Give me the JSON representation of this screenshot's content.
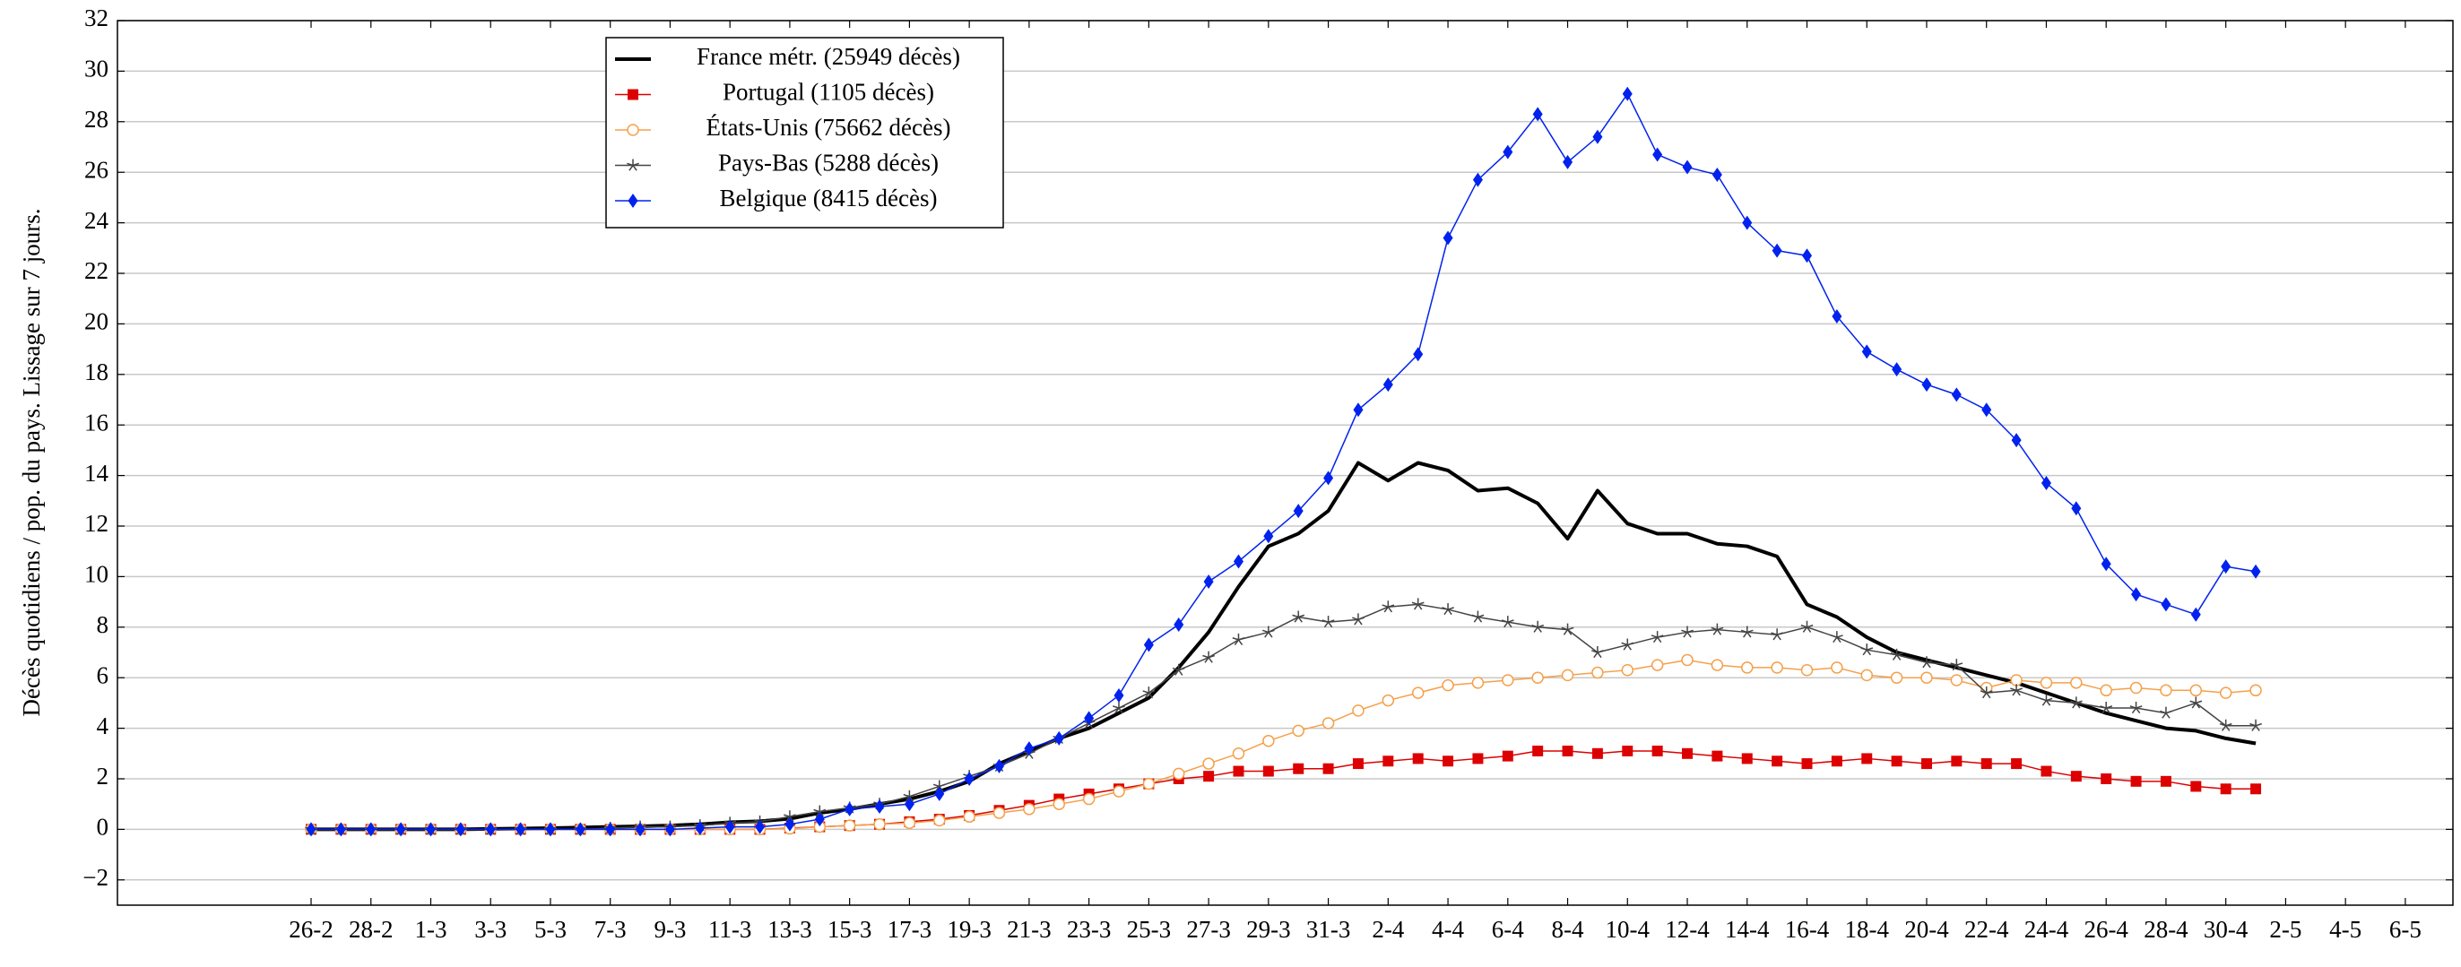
{
  "chart_data": {
    "type": "line",
    "ylabel": "Décès quotidiens / pop. du pays. Lissage sur 7 jours.",
    "categories": [
      "26-2",
      null,
      "28-2",
      null,
      "1-3",
      null,
      "3-3",
      null,
      "5-3",
      null,
      "7-3",
      null,
      "9-3",
      null,
      "11-3",
      null,
      "13-3",
      null,
      "15-3",
      null,
      "17-3",
      null,
      "19-3",
      null,
      "21-3",
      null,
      "23-3",
      null,
      "25-3",
      null,
      "27-3",
      null,
      "29-3",
      null,
      "31-3",
      null,
      "2-4",
      null,
      "4-4",
      null,
      "6-4",
      null,
      "8-4",
      null,
      "10-4",
      null,
      "12-4",
      null,
      "14-4",
      null,
      "16-4",
      null,
      "18-4",
      null,
      "20-4",
      null,
      "22-4",
      null,
      "24-4",
      null,
      "26-4",
      null,
      "28-4",
      null,
      "30-4",
      null,
      "2-5",
      null,
      "4-5",
      null,
      "6-5"
    ],
    "ylim": [
      -3,
      32
    ],
    "yticks": [
      {
        "value": -2,
        "label": "−2"
      },
      0,
      2,
      4,
      6,
      8,
      10,
      12,
      14,
      16,
      18,
      20,
      22,
      24,
      26,
      28,
      30,
      32
    ],
    "grid": true,
    "legend": "upper left",
    "series": [
      {
        "name": "France métr. (25949 décès)",
        "color": "#000000",
        "marker": "none",
        "values": [
          0,
          0,
          0,
          0,
          0,
          0,
          0.02,
          0.03,
          0.05,
          0.07,
          0.1,
          0.12,
          0.15,
          0.2,
          0.28,
          0.32,
          0.42,
          0.65,
          0.8,
          1.0,
          1.2,
          1.5,
          1.9,
          2.6,
          3.1,
          3.6,
          4.0,
          4.6,
          5.2,
          6.4,
          7.8,
          9.6,
          11.2,
          11.7,
          12.6,
          14.5,
          13.8,
          14.5,
          14.2,
          13.4,
          13.5,
          12.9,
          11.5,
          13.4,
          12.1,
          11.7,
          11.7,
          11.3,
          11.2,
          10.8,
          8.9,
          8.4,
          7.6,
          7.0,
          6.7,
          6.4,
          6.1,
          5.8,
          5.4,
          5.0,
          4.6,
          4.3,
          4.0,
          3.9,
          3.6,
          3.4,
          null,
          null,
          null,
          null,
          null
        ]
      },
      {
        "name": "Portugal (1105 décès)",
        "color": "#dd0000",
        "marker": "square",
        "values": [
          0,
          0,
          0,
          0,
          0,
          0,
          0,
          0,
          0,
          0,
          0,
          0,
          0,
          0,
          0,
          0,
          0.05,
          0.1,
          0.15,
          0.2,
          0.3,
          0.4,
          0.55,
          0.75,
          0.95,
          1.2,
          1.4,
          1.6,
          1.8,
          2.0,
          2.1,
          2.3,
          2.3,
          2.4,
          2.4,
          2.6,
          2.7,
          2.8,
          2.7,
          2.8,
          2.9,
          3.1,
          3.1,
          3.0,
          3.1,
          3.1,
          3.0,
          2.9,
          2.8,
          2.7,
          2.6,
          2.7,
          2.8,
          2.7,
          2.6,
          2.7,
          2.6,
          2.6,
          2.3,
          2.1,
          2.0,
          1.9,
          1.9,
          1.7,
          1.6,
          1.6,
          null,
          null,
          null,
          null,
          null
        ]
      },
      {
        "name": "États-Unis (75662 décès)",
        "color": "#f5a04a",
        "marker": "circle",
        "values": [
          0,
          0,
          0,
          0,
          0,
          0,
          0,
          0,
          0,
          0,
          0,
          0,
          0,
          0,
          0,
          0,
          0.03,
          0.1,
          0.15,
          0.2,
          0.25,
          0.35,
          0.5,
          0.65,
          0.8,
          1.0,
          1.2,
          1.5,
          1.8,
          2.2,
          2.6,
          3.0,
          3.5,
          3.9,
          4.2,
          4.7,
          5.1,
          5.4,
          5.7,
          5.8,
          5.9,
          6.0,
          6.1,
          6.2,
          6.3,
          6.5,
          6.7,
          6.5,
          6.4,
          6.4,
          6.3,
          6.4,
          6.1,
          6.0,
          6.0,
          5.9,
          5.6,
          5.9,
          5.8,
          5.8,
          5.5,
          5.6,
          5.5,
          5.5,
          5.4,
          5.5,
          null,
          null,
          null,
          null,
          null
        ]
      },
      {
        "name": "Pays-Bas (5288 décès)",
        "color": "#444444",
        "marker": "star",
        "values": [
          0,
          0,
          0,
          0,
          0,
          0,
          0,
          0,
          0,
          0,
          0.05,
          0.1,
          0.1,
          0.15,
          0.25,
          0.3,
          0.5,
          0.7,
          0.85,
          1.0,
          1.3,
          1.7,
          2.1,
          2.5,
          3.0,
          3.6,
          4.2,
          4.8,
          5.4,
          6.3,
          6.8,
          7.5,
          7.8,
          8.4,
          8.2,
          8.3,
          8.8,
          8.9,
          8.7,
          8.4,
          8.2,
          8.0,
          7.9,
          7.0,
          7.3,
          7.6,
          7.8,
          7.9,
          7.8,
          7.7,
          8.0,
          7.6,
          7.1,
          6.9,
          6.6,
          6.5,
          5.4,
          5.5,
          5.1,
          5.0,
          4.8,
          4.8,
          4.6,
          5.0,
          4.1,
          4.1,
          null,
          null,
          null,
          null,
          null
        ]
      },
      {
        "name": "Belgique (8415 décès)",
        "color": "#0022ee",
        "marker": "diamond",
        "values": [
          0,
          0,
          0,
          0,
          0,
          0,
          0,
          0,
          0,
          0,
          0,
          0,
          0,
          0.05,
          0.1,
          0.1,
          0.2,
          0.4,
          0.8,
          0.9,
          1.0,
          1.4,
          2.0,
          2.5,
          3.2,
          3.6,
          4.4,
          5.3,
          7.3,
          8.1,
          9.8,
          10.6,
          11.6,
          12.6,
          13.9,
          16.6,
          17.6,
          18.8,
          23.4,
          25.7,
          26.8,
          28.3,
          26.4,
          27.4,
          29.1,
          26.7,
          26.2,
          25.9,
          24.0,
          22.9,
          22.7,
          20.3,
          18.9,
          18.2,
          17.6,
          17.2,
          16.6,
          15.4,
          13.7,
          12.7,
          10.5,
          9.3,
          8.9,
          8.5,
          10.4,
          10.2,
          null,
          null,
          null,
          null,
          null
        ]
      }
    ]
  }
}
